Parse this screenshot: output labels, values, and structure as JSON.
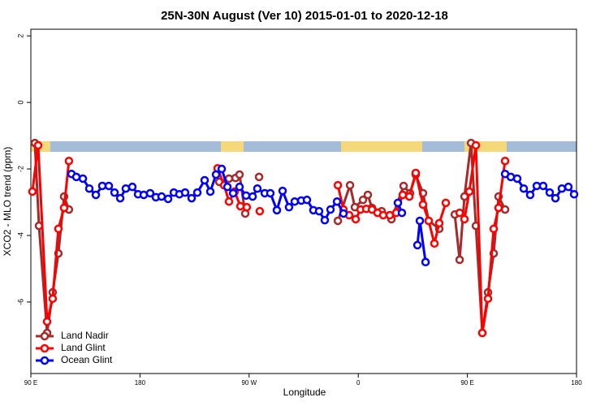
{
  "chart_data": {
    "type": "line",
    "title": "25N-30N August (Ver 10)   2015-01-01 to 2020-12-18",
    "xlabel": "Longitude",
    "ylabel": "XCO2 - MLO trend (ppm)",
    "xlim": [
      90,
      540
    ],
    "ylim": [
      -8.15,
      2.2
    ],
    "xticks": [
      {
        "value": 90,
        "label": "90 E"
      },
      {
        "value": 180,
        "label": "180"
      },
      {
        "value": 270,
        "label": "90 W"
      },
      {
        "value": 360,
        "label": "0"
      },
      {
        "value": 450,
        "label": "90 E"
      },
      {
        "value": 540,
        "label": "180"
      }
    ],
    "yticks": [
      -6,
      -4,
      -2,
      0,
      2
    ],
    "legend": "bottom-left",
    "series": [
      {
        "name": "Land Nadir",
        "color": "#a52a2a",
        "x": [
          93.3,
          96.7,
          103.4,
          108.0,
          112.7,
          117.4,
          121.4,
          null,
          245.4,
          253.4,
          258.8,
          262.1,
          266.8,
          null,
          278.2,
          null,
          343.2,
          353.2,
          357.2,
          363.9,
          367.9,
          371.3,
          379.3,
          387.4,
          397.4,
          402.7,
          407.4,
          413.4,
          418.1,
          426.8,
          null,
          439.6,
          443.6,
          447.6,
          453.0,
          457.0,
          462.3,
          467.0,
          471.7,
          475.7,
          481.1
        ],
        "values": [
          -1.22,
          -3.71,
          -6.93,
          -5.71,
          -4.54,
          -2.83,
          -3.22,
          null,
          -2.39,
          -2.29,
          -2.27,
          -2.17,
          -3.34,
          null,
          -2.24,
          null,
          -3.56,
          -2.49,
          -3.15,
          -2.93,
          -2.78,
          -3.17,
          -3.27,
          -3.51,
          -2.51,
          -2.73,
          -2.17,
          -2.73,
          -3.56,
          -3.8,
          null,
          -3.37,
          -4.73,
          -2.83,
          -1.22,
          -3.71,
          -6.93,
          -5.71,
          -4.54,
          -2.83,
          -3.22
        ]
      },
      {
        "name": "Land Glint",
        "color": "#ff0000",
        "x": [
          91.3,
          96.0,
          103.4,
          108.0,
          112.7,
          117.4,
          121.4,
          null,
          244.0,
          249.4,
          253.4,
          258.1,
          262.8,
          268.1,
          null,
          278.8,
          null,
          343.2,
          347.8,
          352.5,
          357.9,
          361.9,
          366.6,
          371.3,
          375.9,
          380.6,
          386.0,
          391.3,
          396.7,
          402.1,
          407.4,
          413.4,
          418.1,
          422.8,
          426.8,
          432.2,
          null,
          443.6,
          447.6,
          451.6,
          457.0,
          462.3,
          467.0,
          471.7,
          475.7,
          481.1
        ],
        "values": [
          -2.68,
          -1.29,
          -6.59,
          -5.9,
          -3.8,
          -3.17,
          -1.76,
          null,
          -1.98,
          -2.49,
          -2.98,
          -2.68,
          -3.12,
          -3.15,
          null,
          -3.27,
          null,
          -2.49,
          -3.22,
          -3.39,
          -3.51,
          -3.22,
          -3.2,
          -3.22,
          -3.32,
          -3.39,
          -3.39,
          -3.32,
          -2.78,
          -2.83,
          -2.12,
          -3.07,
          -3.56,
          -4.24,
          -3.63,
          -3.02,
          null,
          -3.32,
          -3.51,
          -2.68,
          -1.29,
          -6.93,
          -5.9,
          -3.8,
          -3.17,
          -1.76
        ]
      },
      {
        "name": "Ocean Glint",
        "color": "#0000ff",
        "x": [
          123.5,
          127.5,
          132.9,
          138.2,
          143.6,
          148.9,
          154.3,
          159.0,
          163.7,
          168.3,
          173.7,
          178.4,
          183.1,
          188.4,
          193.1,
          197.8,
          203.2,
          207.9,
          212.5,
          217.2,
          222.6,
          227.3,
          233.3,
          238.0,
          242.7,
          247.4,
          252.1,
          256.8,
          262.1,
          267.5,
          272.9,
          276.8,
          282.9,
          287.5,
          292.9,
          297.6,
          302.9,
          307.6,
          313.0,
          317.7,
          323.0,
          327.7,
          332.4,
          337.1,
          342.5,
          347.8,
          null,
          392.7,
          396.0,
          null,
          408.8,
          410.8,
          415.5,
          null,
          481.1,
          485.8,
          491.1,
          496.5,
          501.8,
          507.2,
          512.5,
          517.9,
          522.6,
          527.9,
          533.3,
          538.0
        ],
        "values": [
          -2.15,
          -2.24,
          -2.29,
          -2.59,
          -2.78,
          -2.51,
          -2.51,
          -2.71,
          -2.88,
          -2.59,
          -2.54,
          -2.76,
          -2.78,
          -2.73,
          -2.85,
          -2.83,
          -2.9,
          -2.71,
          -2.76,
          -2.71,
          -2.88,
          -2.71,
          -2.34,
          -2.68,
          -2.17,
          -2.0,
          -2.54,
          -2.73,
          -2.54,
          -2.8,
          -2.83,
          -2.59,
          -2.73,
          -2.73,
          -3.24,
          -2.66,
          -3.15,
          -2.98,
          -2.95,
          -2.93,
          -3.24,
          -3.27,
          -3.54,
          -3.22,
          -2.98,
          -3.34,
          null,
          -3.02,
          -3.32,
          null,
          -4.29,
          -3.56,
          -4.8,
          null,
          -2.15,
          -2.24,
          -2.29,
          -2.59,
          -2.78,
          -2.51,
          -2.51,
          -2.71,
          -2.88,
          -2.59,
          -2.54,
          -2.76
        ]
      }
    ]
  }
}
